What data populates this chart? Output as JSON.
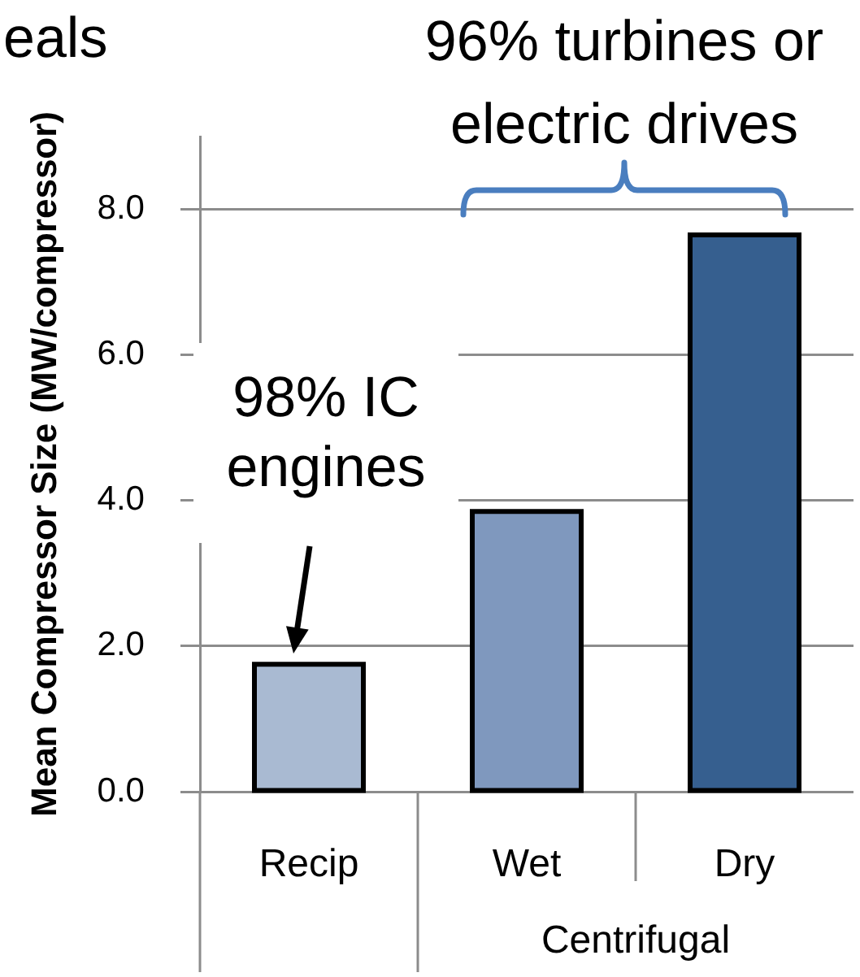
{
  "chart_data": {
    "type": "bar",
    "annotations": [
      "eals",
      "96% turbines or electric drives",
      {
        "text": "98% IC engines",
        "x": "Recip",
        "y": 1.75
      },
      "Centrifugal"
    ],
    "ylabel": "Mean Compressor Size (MW/compressor)",
    "categories": [
      "Recip",
      "Wet",
      "Dry"
    ],
    "values": [
      1.75,
      3.85,
      7.65
    ],
    "colors": [
      "#a9bad2",
      "#7f98be",
      "#365f8f"
    ],
    "ylim": [
      0,
      9
    ],
    "yticks": [
      {
        "value": 0,
        "label": "0.0"
      },
      {
        "value": 2,
        "label": "2.0"
      },
      {
        "value": 4,
        "label": "4.0"
      },
      {
        "value": 6,
        "label": "6.0"
      },
      {
        "value": 8,
        "label": "8.0"
      }
    ],
    "grid": "y"
  }
}
